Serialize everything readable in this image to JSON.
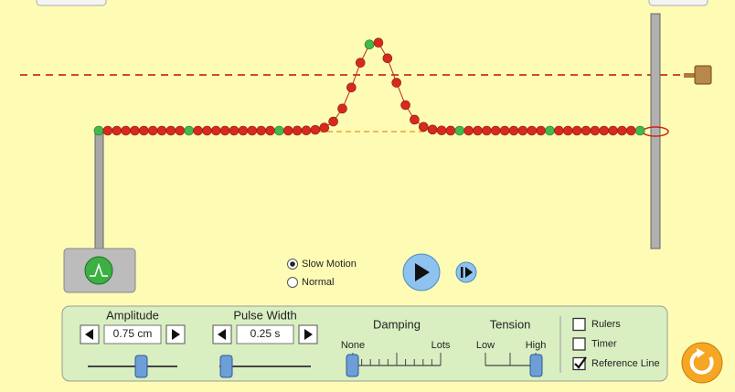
{
  "motion": {
    "options": [
      "Slow Motion",
      "Normal"
    ],
    "selected": 0
  },
  "amplitude": {
    "label": "Amplitude",
    "value": "0.75 cm"
  },
  "pulse_width": {
    "label": "Pulse Width",
    "value": "0.25 s"
  },
  "damping": {
    "label": "Damping",
    "min_label": "None",
    "max_label": "Lots"
  },
  "tension": {
    "label": "Tension",
    "min_label": "Low",
    "max_label": "High"
  },
  "checkboxes": [
    {
      "label": "Rulers",
      "checked": false
    },
    {
      "label": "Timer",
      "checked": false
    },
    {
      "label": "Reference Line",
      "checked": true
    }
  ]
}
